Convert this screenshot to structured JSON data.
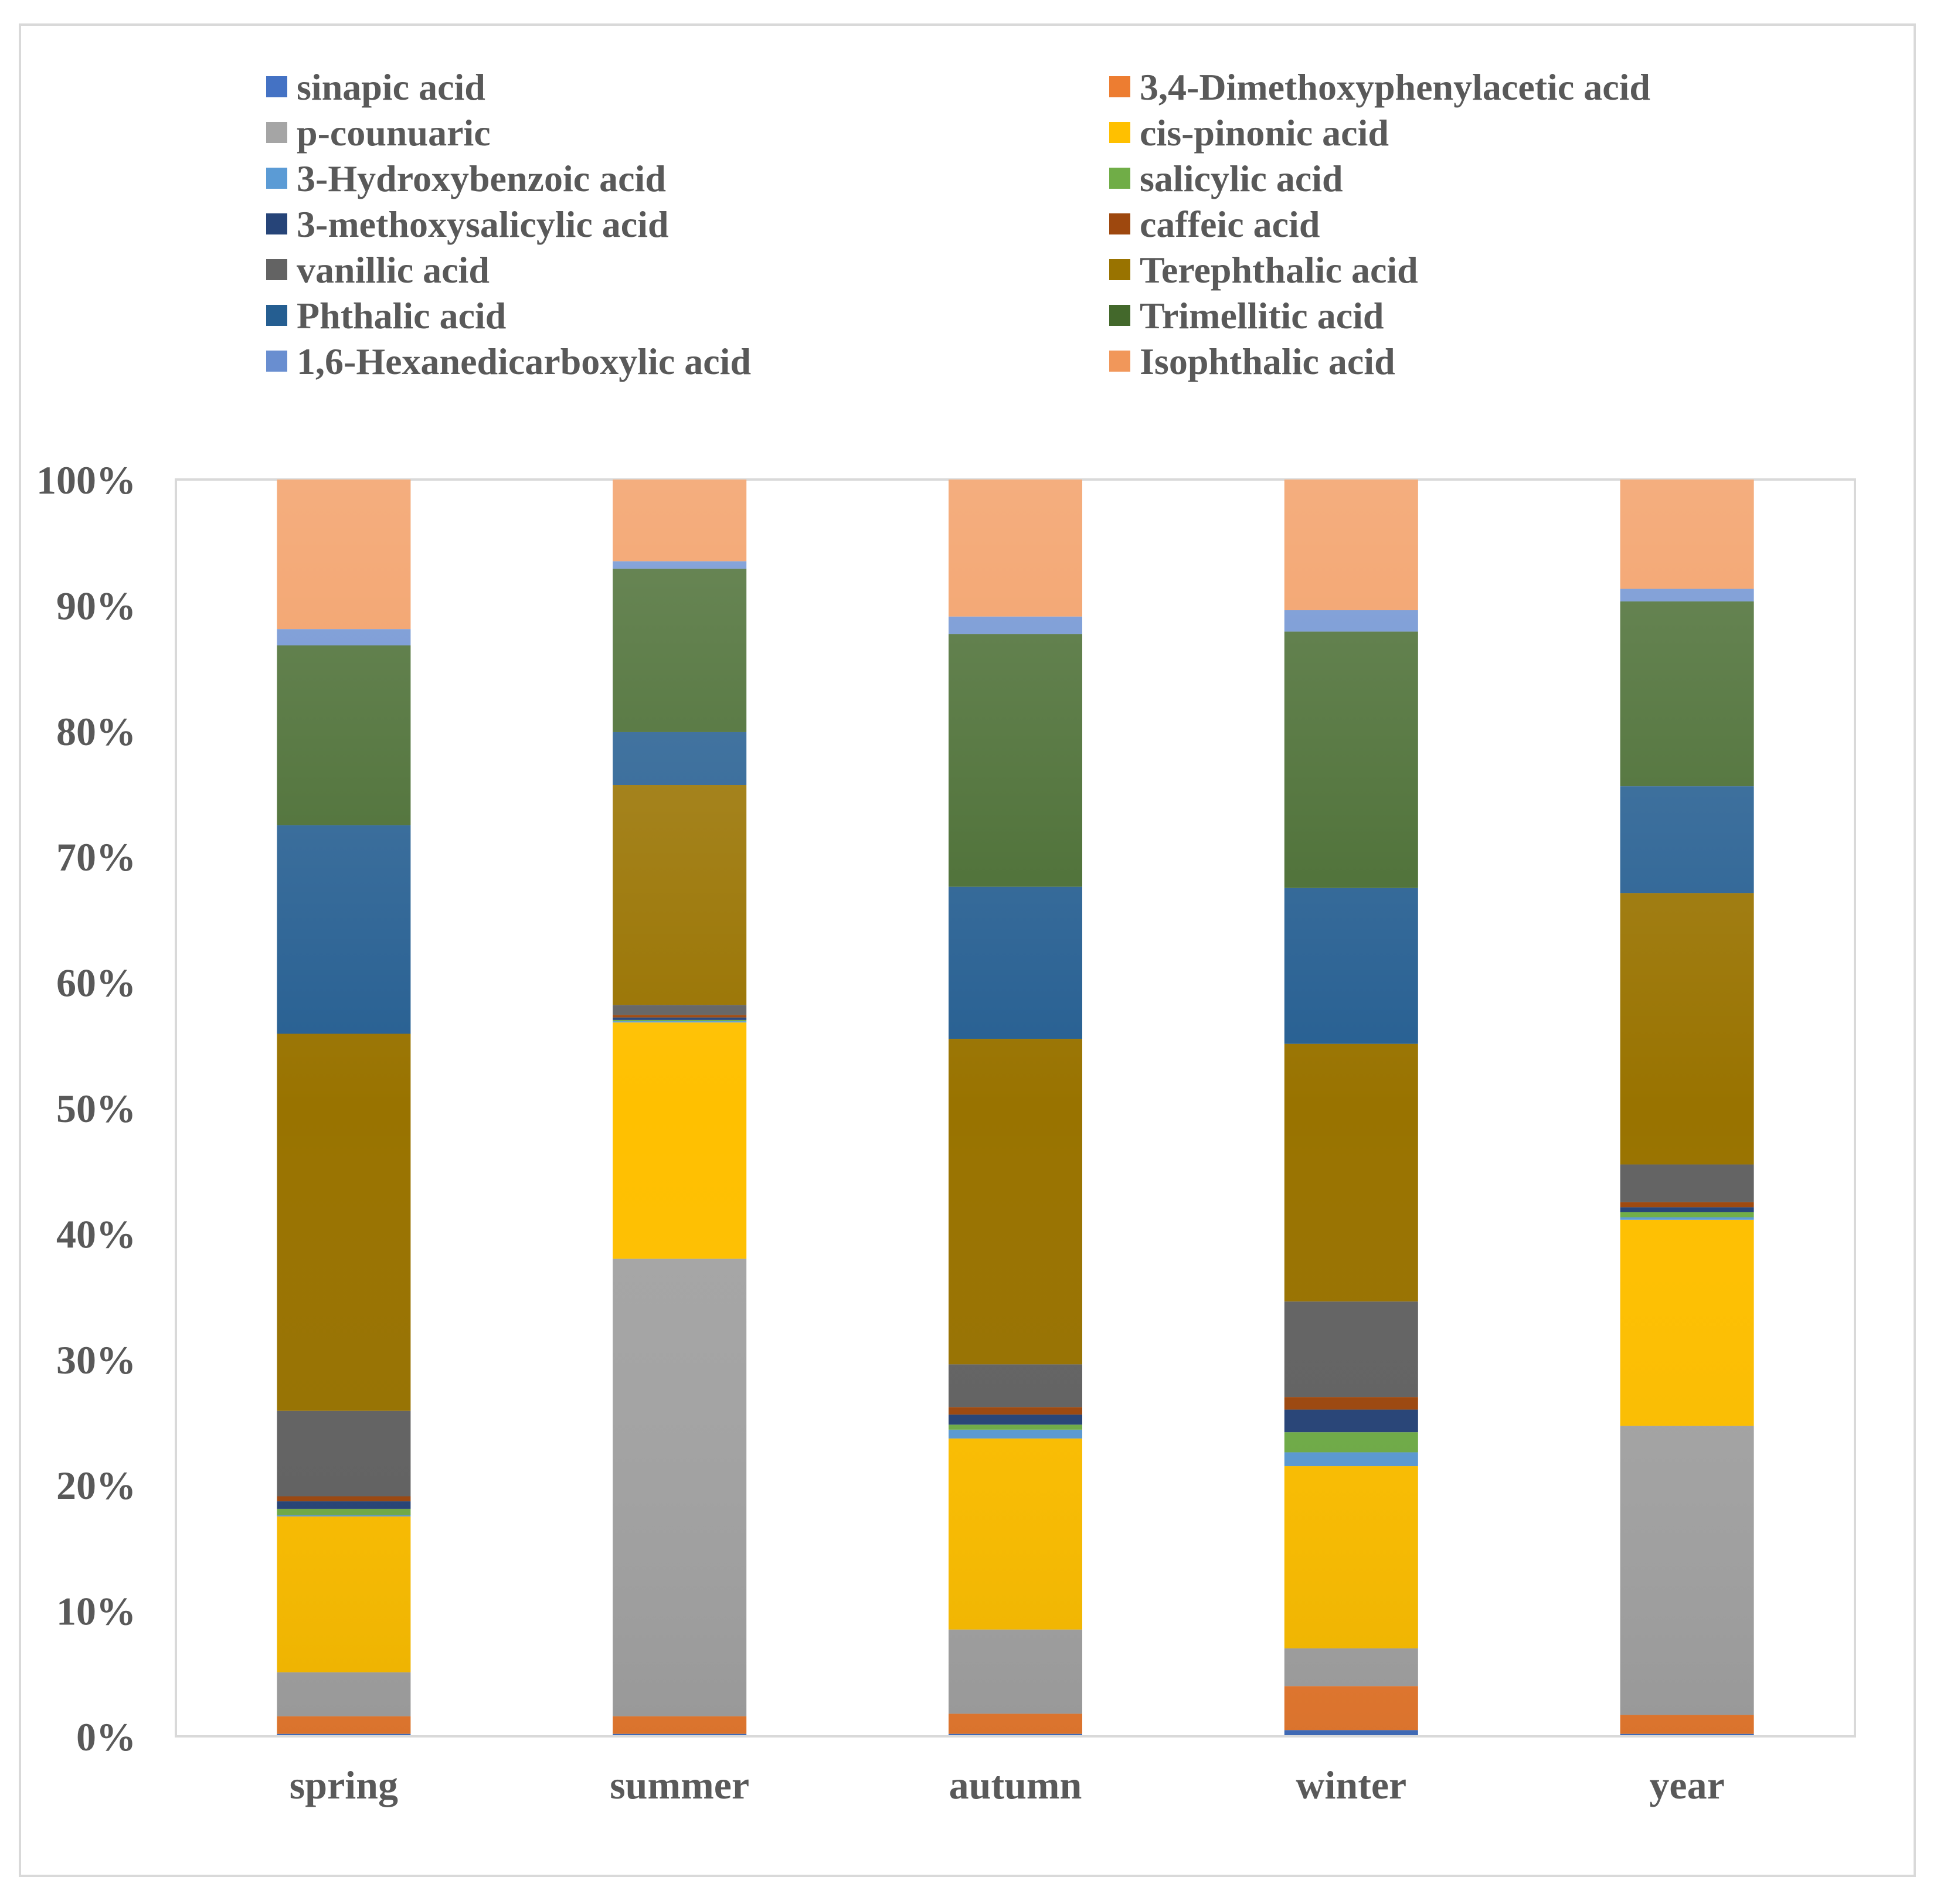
{
  "chart_data": {
    "type": "bar",
    "stacked": true,
    "percent": true,
    "title": "",
    "xlabel": "",
    "ylabel": "",
    "ylim": [
      0,
      100
    ],
    "yticks": [
      "0%",
      "10%",
      "20%",
      "30%",
      "40%",
      "50%",
      "60%",
      "70%",
      "80%",
      "90%",
      "100%"
    ],
    "legend_position": "top",
    "categories": [
      "spring",
      "summer",
      "autumn",
      "winter",
      "year"
    ],
    "series": [
      {
        "name": "sinapic acid",
        "color": "#4472c4",
        "values": [
          0.2,
          0.2,
          0.2,
          0.5,
          0.2
        ]
      },
      {
        "name": "3,4-Dimethoxyphenylacetic acid",
        "color": "#ed7d31",
        "values": [
          1.4,
          1.4,
          1.6,
          3.5,
          1.5
        ]
      },
      {
        "name": "p-counuaric",
        "color": "#a5a5a5",
        "values": [
          3.5,
          36.4,
          6.7,
          3.0,
          23.0
        ]
      },
      {
        "name": "cis-pinonic acid",
        "color": "#ffc000",
        "values": [
          12.4,
          18.8,
          15.2,
          14.5,
          16.4
        ]
      },
      {
        "name": "3-Hydroxybenzoic acid",
        "color": "#5b9bd5",
        "values": [
          0.1,
          0.1,
          0.7,
          1.1,
          0.2
        ]
      },
      {
        "name": "salicylic acid",
        "color": "#70ad47",
        "values": [
          0.5,
          0.1,
          0.4,
          1.6,
          0.4
        ]
      },
      {
        "name": "3-methoxysalicylic acid",
        "color": "#264478",
        "values": [
          0.6,
          0.2,
          0.8,
          1.8,
          0.4
        ]
      },
      {
        "name": "caffeic acid",
        "color": "#9e480e",
        "values": [
          0.4,
          0.2,
          0.6,
          1.0,
          0.4
        ]
      },
      {
        "name": "vanillic acid",
        "color": "#636363",
        "values": [
          6.8,
          0.8,
          3.4,
          7.6,
          3.0
        ]
      },
      {
        "name": "Terephthalic acid",
        "color": "#997300",
        "values": [
          30.0,
          17.5,
          25.9,
          20.5,
          21.6
        ]
      },
      {
        "name": "Phthalic acid",
        "color": "#255e91",
        "values": [
          16.6,
          4.2,
          12.1,
          12.4,
          8.5
        ]
      },
      {
        "name": "Trimellitic acid",
        "color": "#43682b",
        "values": [
          14.3,
          13.0,
          20.1,
          20.4,
          14.7
        ]
      },
      {
        "name": "1,6-Hexanedicarboxylic acid",
        "color": "#698ed0",
        "values": [
          1.3,
          0.6,
          1.4,
          1.7,
          1.0
        ]
      },
      {
        "name": "Isophthalic acid",
        "color": "#f1975a",
        "values": [
          11.9,
          6.5,
          10.9,
          10.4,
          8.7
        ]
      }
    ]
  }
}
